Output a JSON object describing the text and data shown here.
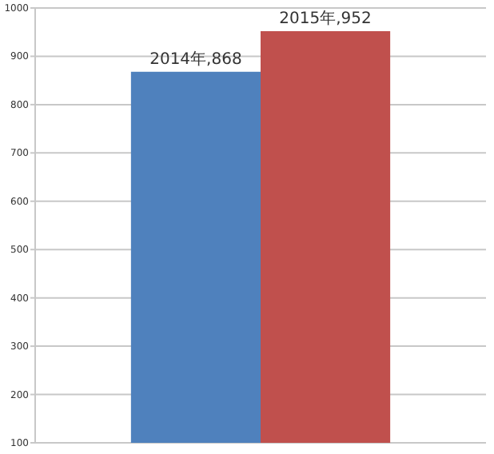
{
  "chart_data": {
    "type": "bar",
    "categories": [
      null
    ],
    "series": [
      {
        "color": "#4f81bd",
        "values": [
          868
        ],
        "value_labels": [
          "2014年,868"
        ]
      },
      {
        "color": "#c0504d",
        "values": [
          952
        ],
        "value_labels": [
          "2015年,952"
        ]
      }
    ],
    "ylim": [
      100,
      1000
    ],
    "yticks": [
      100,
      200,
      300,
      400,
      500,
      600,
      700,
      800,
      900,
      1000
    ],
    "grid": "y"
  }
}
